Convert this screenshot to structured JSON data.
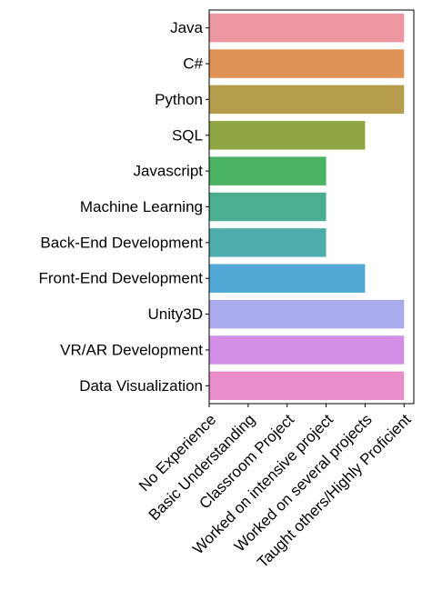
{
  "chart_data": {
    "type": "bar",
    "orientation": "horizontal",
    "categories": [
      "Java",
      "C#",
      "Python",
      "SQL",
      "Javascript",
      "Machine Learning",
      "Back-End Development",
      "Front-End Development",
      "Unity3D",
      "VR/AR Development",
      "Data Visualization"
    ],
    "values": [
      5,
      5,
      5,
      4,
      3,
      3,
      3,
      4,
      5,
      5,
      5
    ],
    "x_tick_labels": [
      "No Experience",
      "Basic Understanding",
      "Classroom Project",
      "Worked on intensive project",
      "Worked on several projects",
      "Taught others/Highly Proficient"
    ],
    "xlim": [
      0,
      5.25
    ],
    "title": "",
    "xlabel": "",
    "ylabel": "",
    "grid": false,
    "colors": [
      "#ec96a0",
      "#df9356",
      "#b69c4d",
      "#90a543",
      "#4bb463",
      "#4cae90",
      "#4eaeae",
      "#53a9d6",
      "#a9aaec",
      "#d38fe6",
      "#e88fcb"
    ]
  }
}
